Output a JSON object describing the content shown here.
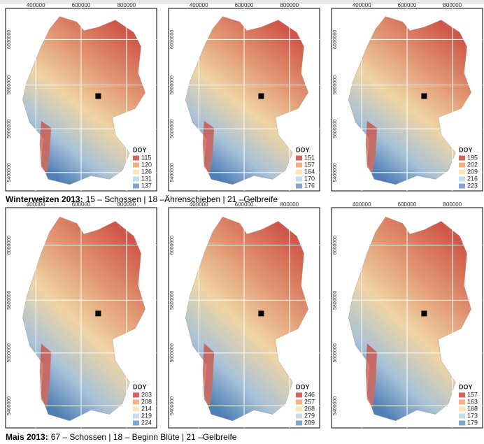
{
  "x_ticks": [
    "400000",
    "600000",
    "800000"
  ],
  "y_ticks": [
    "6000000",
    "5800000",
    "5600000",
    "5400000"
  ],
  "rows": [
    {
      "caption": {
        "label": "Winterweizen 2013:",
        "text": "15 – Schossen | 18 –Ährenschieben  | 21 –Gelbreife"
      },
      "panels": [
        {
          "legend_title": "DOY",
          "legend": [
            "115",
            "120",
            "126",
            "131",
            "137"
          ]
        },
        {
          "legend_title": "DOY",
          "legend": [
            "151",
            "157",
            "164",
            "170",
            "176"
          ]
        },
        {
          "legend_title": "DOY",
          "legend": [
            "195",
            "202",
            "209",
            "216",
            "223"
          ]
        }
      ]
    },
    {
      "caption": {
        "label": "Mais 2013:",
        "text": "67 – Schossen | 18 – Beginn Blüte | 21 –Gelbreife"
      },
      "panels": [
        {
          "legend_title": "DOY",
          "legend": [
            "203",
            "208",
            "214",
            "219",
            "224"
          ]
        },
        {
          "legend_title": "DOY",
          "legend": [
            "246",
            "257",
            "268",
            "279",
            "289"
          ]
        },
        {
          "legend_title": "DOY",
          "legend": [
            "157",
            "163",
            "168",
            "173",
            "179"
          ]
        }
      ]
    }
  ]
}
